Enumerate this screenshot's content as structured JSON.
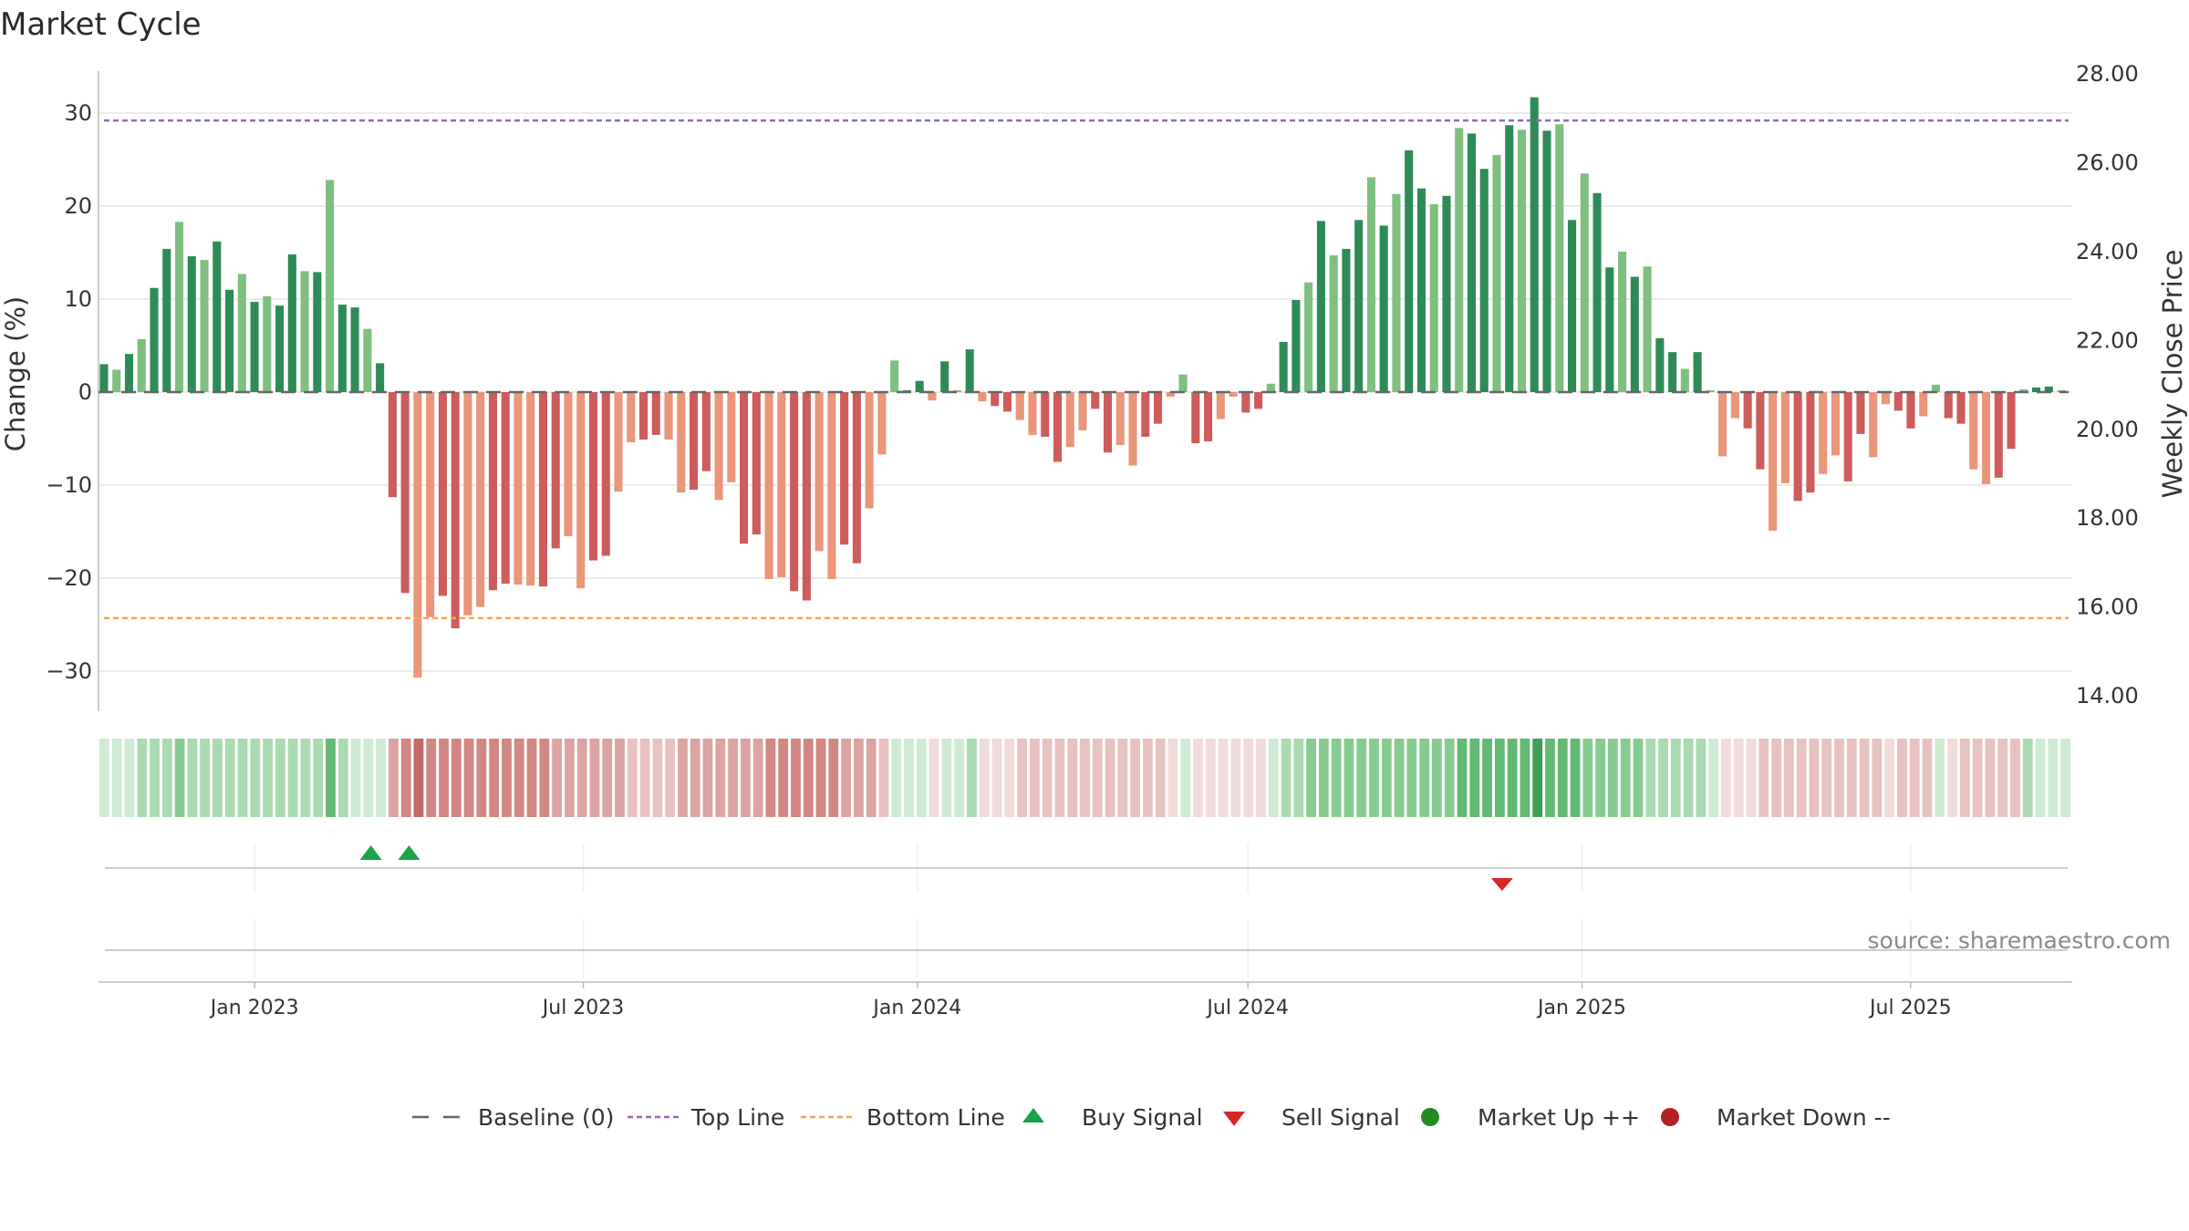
{
  "chart_data": {
    "type": "bar",
    "title": "Market Cycle",
    "ylabel": "Change (%)",
    "y2label": "Weekly Close Price",
    "ylim": [
      -34,
      34.5
    ],
    "y2lim": [
      13.8,
      28.05
    ],
    "yticks": [
      "−30",
      "−20",
      "−10",
      "0",
      "10",
      "20",
      "30"
    ],
    "y2ticks": [
      "14.00",
      "16.00",
      "18.00",
      "20.00",
      "22.00",
      "24.00",
      "26.00",
      "28.00"
    ],
    "x_start": "2022-10-10",
    "x_end": "2025-09-22",
    "x_axis_start": "2022-10-07",
    "x_axis_end": "2025-09-28",
    "xticks": [
      {
        "date": "2023-01-01",
        "label": "Jan 2023"
      },
      {
        "date": "2023-07-01",
        "label": "Jul 2023"
      },
      {
        "date": "2024-01-01",
        "label": "Jan 2024"
      },
      {
        "date": "2024-07-01",
        "label": "Jul 2024"
      },
      {
        "date": "2025-01-01",
        "label": "Jan 2025"
      },
      {
        "date": "2025-07-01",
        "label": "Jul 2025"
      }
    ],
    "top_line": 29.2,
    "bottom_line": -24.3,
    "values": [
      3,
      2.4,
      4.1,
      5.7,
      11.2,
      15.4,
      18.3,
      14.6,
      14.2,
      16.2,
      11,
      12.7,
      9.7,
      10.3,
      9.3,
      14.8,
      13,
      12.9,
      22.8,
      9.4,
      9.1,
      6.8,
      3.1,
      -11.3,
      -21.6,
      -30.7,
      -24.2,
      -21.9,
      -25.4,
      -24,
      -23.1,
      -21.3,
      -20.6,
      -20.7,
      -20.8,
      -20.9,
      -16.8,
      -15.5,
      -21.1,
      -18.1,
      -17.6,
      -10.7,
      -5.4,
      -5.1,
      -4.6,
      -5.1,
      -10.8,
      -10.5,
      -8.5,
      -11.6,
      -9.7,
      -16.3,
      -15.3,
      -20.1,
      -19.9,
      -21.4,
      -22.4,
      -17.1,
      -20.1,
      -16.4,
      -18.4,
      -12.5,
      -6.7,
      3.4,
      0,
      1.2,
      -0.9,
      3.3,
      0,
      4.6,
      -1,
      -1.5,
      -2.1,
      -3,
      -4.6,
      -4.8,
      -7.5,
      -5.9,
      -4.1,
      -1.8,
      -6.5,
      -5.7,
      -7.9,
      -4.8,
      -3.4,
      -0.5,
      1.9,
      -5.5,
      -5.3,
      -2.9,
      -0.5,
      -2.2,
      -1.8,
      0.9,
      5.4,
      9.9,
      11.8,
      18.4,
      14.7,
      15.4,
      18.5,
      23.1,
      17.9,
      21.3,
      26,
      21.9,
      20.2,
      21.1,
      28.4,
      27.8,
      24,
      25.5,
      28.7,
      28.2,
      31.7,
      28.1,
      28.8,
      18.5,
      23.5,
      21.4,
      13.4,
      15.1,
      12.4,
      13.5,
      5.8,
      4.3,
      2.5,
      4.3,
      0,
      -6.9,
      -2.8,
      -3.9,
      -8.3,
      -14.9,
      -9.8,
      -11.7,
      -10.8,
      -8.8,
      -6.8,
      -9.6,
      -4.5,
      -7,
      -1.3,
      -2,
      -3.9,
      -2.6,
      0.8,
      -2.8,
      -3.4,
      -8.3,
      -9.9,
      -9.2,
      -6.1,
      0.3,
      0.5,
      0.6,
      0
    ],
    "strip_levels": [
      1,
      1,
      1,
      2,
      2,
      2,
      3,
      2,
      2,
      2,
      2,
      2,
      2,
      2,
      2,
      2,
      2,
      2,
      4,
      2,
      1,
      1,
      1,
      3,
      4,
      5,
      4,
      4,
      4,
      4,
      4,
      4,
      4,
      4,
      4,
      4,
      3,
      3,
      3,
      3,
      3,
      3,
      2,
      2,
      2,
      2,
      3,
      3,
      3,
      3,
      3,
      3,
      3,
      4,
      4,
      4,
      4,
      4,
      4,
      3,
      3,
      3,
      2,
      1,
      1,
      1,
      1,
      1,
      1,
      2,
      1,
      1,
      1,
      2,
      2,
      2,
      2,
      2,
      2,
      2,
      2,
      2,
      2,
      2,
      2,
      1,
      1,
      1,
      1,
      1,
      1,
      1,
      1,
      1,
      2,
      2,
      3,
      3,
      3,
      3,
      3,
      3,
      3,
      3,
      3,
      3,
      3,
      3,
      4,
      4,
      4,
      4,
      4,
      4,
      5,
      4,
      4,
      4,
      3,
      3,
      3,
      3,
      3,
      2,
      2,
      2,
      2,
      2,
      1,
      1,
      1,
      1,
      2,
      2,
      2,
      2,
      2,
      2,
      2,
      2,
      2,
      2,
      1,
      2,
      2,
      2,
      1,
      1,
      2,
      2,
      2,
      2,
      2,
      2,
      1,
      1,
      1,
      1
    ],
    "buy_signals": [
      "2023-03-06",
      "2023-03-27"
    ],
    "sell_signals": [
      "2024-11-18"
    ],
    "grid": true,
    "legend_position": "bottom-center",
    "legend": [
      {
        "key": "baseline",
        "label": "Baseline (0)"
      },
      {
        "key": "top",
        "label": "Top Line"
      },
      {
        "key": "bottom",
        "label": "Bottom Line"
      },
      {
        "key": "buy",
        "label": "Buy Signal"
      },
      {
        "key": "sell",
        "label": "Sell Signal"
      },
      {
        "key": "up",
        "label": "Market Up ++"
      },
      {
        "key": "down",
        "label": "Market Down --"
      }
    ],
    "source": "source: sharemaestro.com",
    "colors": {
      "up_dark": "#2e8b57",
      "up_light": "#7fbf7f",
      "down_dark": "#cd5c5c",
      "down_light": "#e9967a",
      "top_line": "#9467bd",
      "bottom_line": "#f4a460",
      "baseline": "#666666",
      "buy": "#1aa34a",
      "sell": "#d62728",
      "market_up": "#228b22",
      "market_down": "#b22222",
      "grid": "#e6e6e6",
      "axis": "#bbbbbb",
      "strip_up": [
        "#d0ebd4",
        "#a9dab1",
        "#86cc91",
        "#63b973",
        "#3f9f53"
      ],
      "strip_down": [
        "#f1dcdc",
        "#e7c2c1",
        "#dca4a2",
        "#d18784",
        "#c56a67"
      ]
    }
  }
}
